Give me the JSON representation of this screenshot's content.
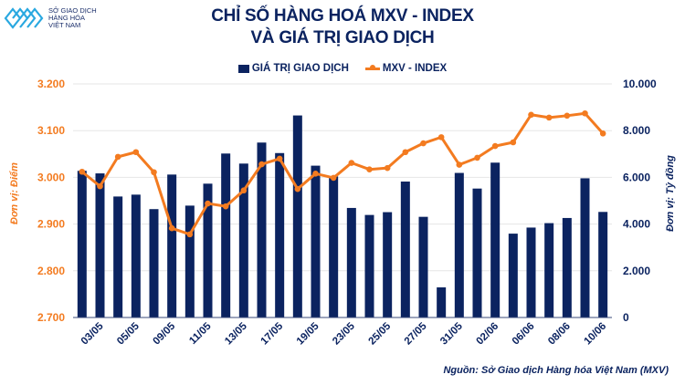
{
  "logo": {
    "line1": "SỞ GIAO DỊCH",
    "line2": "HÀNG HÓA",
    "line3": "VIỆT NAM"
  },
  "colors": {
    "bars": "#0b2360",
    "line": "#f37b20",
    "logo": "#29a8e0"
  },
  "source": "Nguồn: Sở Giao dịch Hàng hóa Việt Nam (MXV)",
  "chart_data": {
    "type": "bar+line",
    "title_line1": "CHỈ SỐ HÀNG HOÁ MXV - INDEX",
    "title_line2": "VÀ GIÁ TRỊ GIAO DỊCH",
    "legend_placement": "top",
    "grid": true,
    "categories": [
      "",
      "03/05",
      "",
      "05/05",
      "",
      "09/05",
      "",
      "11/05",
      "",
      "13/05",
      "",
      "17/05",
      "",
      "19/05",
      "",
      "23/05",
      "",
      "25/05",
      "",
      "27/05",
      "",
      "31/05",
      "",
      "02/06",
      "",
      "06/06",
      "",
      "08/06",
      "",
      "10/06"
    ],
    "y_left": {
      "label": "Đơn vị: Điểm",
      "range": [
        2700,
        3200
      ],
      "ticks": [
        "2.700",
        "2.800",
        "2.900",
        "3.000",
        "3.100",
        "3.200"
      ]
    },
    "y_right": {
      "label": "Đơn vị: Tỷ đồng",
      "range": [
        0,
        10000
      ],
      "ticks": [
        "0",
        "2.000",
        "4.000",
        "6.000",
        "8.000",
        "10.000"
      ]
    },
    "series": [
      {
        "name": "GIÁ TRỊ GIAO DỊCH",
        "type": "bar",
        "axis": "right",
        "values": [
          6280,
          6170,
          5180,
          5260,
          4640,
          6120,
          4790,
          5730,
          7020,
          6590,
          7490,
          7040,
          8650,
          6500,
          6040,
          4690,
          4390,
          4510,
          5820,
          4310,
          1290,
          6190,
          5520,
          6630,
          3590,
          3850,
          4040,
          4260,
          5960,
          4520
        ]
      },
      {
        "name": "MXV - INDEX",
        "type": "line",
        "axis": "left",
        "values": [
          3012,
          2981,
          3044,
          3054,
          3011,
          2891,
          2878,
          2944,
          2938,
          2972,
          3028,
          3040,
          2975,
          3008,
          2999,
          3031,
          3017,
          3020,
          3054,
          3073,
          3086,
          3027,
          3042,
          3067,
          3075,
          3134,
          3128,
          3132,
          3137,
          3094
        ]
      }
    ]
  }
}
